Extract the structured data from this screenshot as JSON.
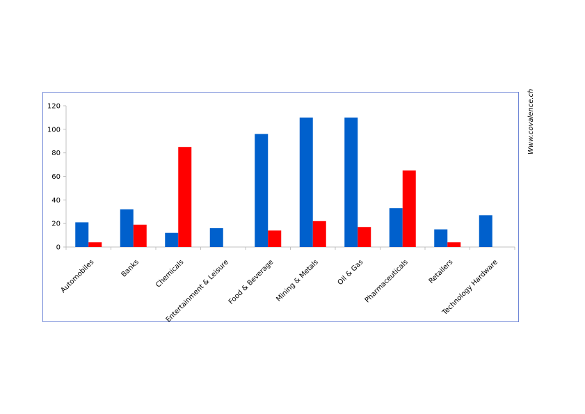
{
  "watermark": "Www.covalence.ch",
  "colors": {
    "series_a": "#0060cc",
    "series_b": "#ff0000",
    "frame": "#6f86d6",
    "axis": "#c0c0c0"
  },
  "chart_data": {
    "type": "bar",
    "categories": [
      "Automobiles",
      "Banks",
      "Chemicals",
      "Entertainment & Leisure",
      "Food & Beverage",
      "Mining & Metals",
      "Oil & Gas",
      "Pharmaceuticals",
      "Retailers",
      "Technology Hardware"
    ],
    "series": [
      {
        "color": "#0060cc",
        "values": [
          21,
          32,
          12,
          16,
          96,
          110,
          110,
          33,
          15,
          27
        ]
      },
      {
        "color": "#ff0000",
        "values": [
          4,
          19,
          85,
          0,
          14,
          22,
          17,
          65,
          4,
          0
        ]
      }
    ],
    "ylim": [
      0,
      120
    ],
    "yticks": [
      0,
      20,
      40,
      60,
      80,
      100,
      120
    ],
    "grid": false,
    "legend": "none",
    "title": "",
    "xlabel": "",
    "ylabel": ""
  }
}
